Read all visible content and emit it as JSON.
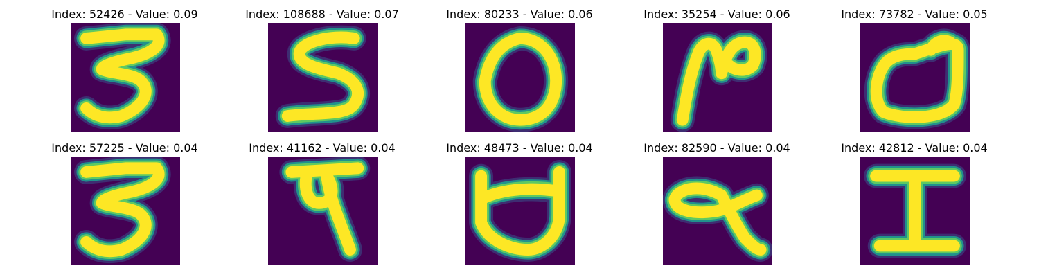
{
  "colors": {
    "background": "#440154",
    "stroke_core": "#fde725",
    "stroke_mid": "#5ec962",
    "stroke_edge": "#21918c",
    "stroke_fade": "#3b528b"
  },
  "panels": [
    {
      "title": "Index: 52426 - Value: 0.09",
      "glyph": "devanagari-3-like"
    },
    {
      "title": "Index: 108688 - Value: 0.07",
      "glyph": "s-like"
    },
    {
      "title": "Index: 80233 - Value: 0.06",
      "glyph": "zero-like"
    },
    {
      "title": "Index: 35254 - Value: 0.06",
      "glyph": "n-loop-like"
    },
    {
      "title": "Index: 73782 - Value: 0.05",
      "glyph": "bowl-with-hook"
    },
    {
      "title": "Index: 57225 - Value: 0.04",
      "glyph": "devanagari-3-like"
    },
    {
      "title": "Index: 41162 - Value: 0.04",
      "glyph": "devanagari-ka-like"
    },
    {
      "title": "Index: 48473 - Value: 0.04",
      "glyph": "bowl-with-bar"
    },
    {
      "title": "Index: 82590 - Value: 0.04",
      "glyph": "loop-with-tail"
    },
    {
      "title": "Index: 42812 - Value: 0.04",
      "glyph": "capital-i-like"
    }
  ]
}
